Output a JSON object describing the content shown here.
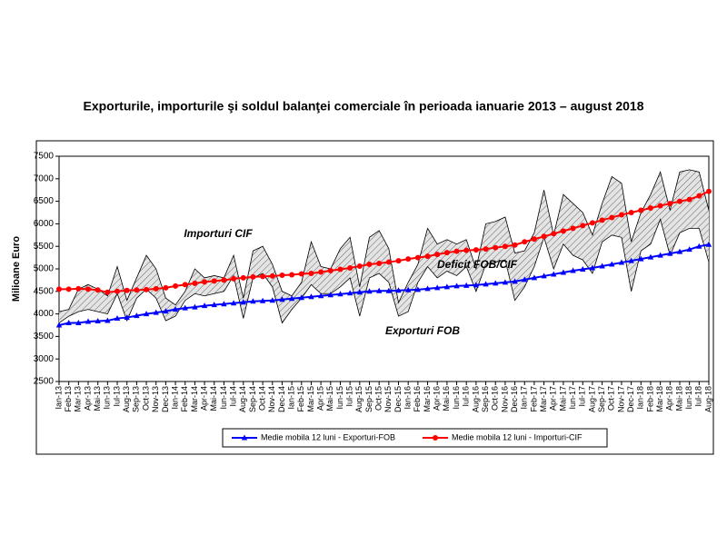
{
  "chart_data": {
    "type": "line",
    "title": "Exporturile, importurile şi soldul balanţei comerciale în perioada ianuarie 2013 – august 2018",
    "y_label": "Milioane Euro",
    "categories": [
      "Ian-13",
      "Feb-13",
      "Mar-13",
      "Apr-13",
      "Mai-13",
      "Iun-13",
      "Iul-13",
      "Aug-13",
      "Sep-13",
      "Oct-13",
      "Nov-13",
      "Dec-13",
      "Ian-14",
      "Feb-14",
      "Mar-14",
      "Apr-14",
      "Mai-14",
      "Iun-14",
      "Iul-14",
      "Aug-14",
      "Sep-14",
      "Oct-14",
      "Nov-14",
      "Dec-14",
      "Ian-15",
      "Feb-15",
      "Mar-15",
      "Apr-15",
      "Mai-15",
      "Iun-15",
      "Iul-15",
      "Aug-15",
      "Sep-15",
      "Oct-15",
      "Nov-15",
      "Dec-15",
      "Ian-16",
      "Feb-16",
      "Mar-16",
      "Apr-16",
      "Mai-16",
      "Iun-16",
      "Iul-16",
      "Aug-16",
      "Sep-16",
      "Oct-16",
      "Nov-16",
      "Dec-16",
      "Ian-17",
      "Feb-17",
      "Mar-17",
      "Apr-17",
      "Mai-17",
      "Iun-17",
      "Iul-17",
      "Aug-17",
      "Sep-17",
      "Oct-17",
      "Nov-17",
      "Dec-17",
      "Ian-18",
      "Feb-18",
      "Mar-18",
      "Apr-18",
      "Mai-18",
      "Iun-18",
      "Iul-18",
      "Aug-18"
    ],
    "ylim": [
      2500,
      7500
    ],
    "yticks": [
      2500,
      3000,
      3500,
      4000,
      4500,
      5000,
      5500,
      6000,
      6500,
      7000,
      7500
    ],
    "series": [
      {
        "name": "Medie mobila 12 luni - Exporturi-FOB",
        "color": "#0000ff",
        "marker": "triangle",
        "values": [
          3750,
          3800,
          3800,
          3830,
          3840,
          3850,
          3900,
          3920,
          3960,
          4000,
          4030,
          4060,
          4100,
          4130,
          4150,
          4180,
          4200,
          4220,
          4240,
          4260,
          4280,
          4290,
          4300,
          4320,
          4340,
          4360,
          4380,
          4400,
          4420,
          4440,
          4460,
          4480,
          4500,
          4510,
          4510,
          4520,
          4530,
          4540,
          4560,
          4580,
          4600,
          4620,
          4630,
          4640,
          4660,
          4680,
          4700,
          4720,
          4760,
          4800,
          4840,
          4880,
          4920,
          4960,
          4990,
          5020,
          5060,
          5100,
          5140,
          5180,
          5220,
          5260,
          5300,
          5340,
          5380,
          5430,
          5500,
          5540
        ]
      },
      {
        "name": "Medie mobila 12 luni - Importuri-CIF",
        "color": "#ff0000",
        "marker": "circle",
        "values": [
          4550,
          4550,
          4560,
          4550,
          4530,
          4480,
          4500,
          4520,
          4530,
          4540,
          4560,
          4580,
          4620,
          4650,
          4680,
          4710,
          4730,
          4750,
          4780,
          4800,
          4820,
          4830,
          4840,
          4860,
          4870,
          4890,
          4900,
          4930,
          4960,
          4990,
          5020,
          5060,
          5100,
          5120,
          5150,
          5180,
          5220,
          5250,
          5280,
          5320,
          5360,
          5390,
          5410,
          5420,
          5440,
          5470,
          5500,
          5530,
          5600,
          5660,
          5720,
          5780,
          5840,
          5900,
          5960,
          6020,
          6080,
          6140,
          6200,
          6250,
          6300,
          6350,
          6400,
          6450,
          6500,
          6540,
          6620,
          6720
        ]
      }
    ],
    "monthly": [
      {
        "name": "Importuri CIF",
        "color": "#000000",
        "values": [
          4050,
          4100,
          4550,
          4650,
          4550,
          4400,
          5050,
          4300,
          4800,
          5300,
          5000,
          4350,
          4200,
          4500,
          5000,
          4800,
          4850,
          4800,
          5300,
          4350,
          5400,
          5500,
          5100,
          4500,
          4400,
          4700,
          5600,
          5050,
          5000,
          5450,
          5700,
          4600,
          5700,
          5850,
          5450,
          4250,
          4700,
          5100,
          5900,
          5550,
          5650,
          5550,
          5650,
          5000,
          6000,
          6050,
          6150,
          5350,
          5400,
          5800,
          6750,
          5750,
          6650,
          6450,
          6250,
          5750,
          6450,
          7050,
          6900,
          5600,
          6250,
          6650,
          7150,
          6300,
          7150,
          7200,
          7150,
          6300
        ]
      },
      {
        "name": "Exporturi FOB",
        "color": "#000000",
        "values": [
          3800,
          3950,
          4050,
          4100,
          4050,
          4000,
          4450,
          3850,
          4350,
          4550,
          4350,
          3850,
          3950,
          4300,
          4450,
          4400,
          4450,
          4500,
          4850,
          3900,
          4800,
          4900,
          4600,
          3800,
          4100,
          4350,
          4650,
          4450,
          4450,
          4600,
          4800,
          3950,
          4800,
          4900,
          4700,
          3950,
          4050,
          4700,
          5050,
          4800,
          4950,
          4850,
          5050,
          4500,
          5100,
          5150,
          5200,
          4300,
          4600,
          5050,
          5700,
          5000,
          5550,
          5300,
          5200,
          4900,
          5600,
          5750,
          5700,
          4500,
          5400,
          5550,
          6100,
          5300,
          5800,
          5900,
          5900,
          5150
        ]
      }
    ],
    "annotations": [
      "Deficit FOB/CIF"
    ]
  }
}
